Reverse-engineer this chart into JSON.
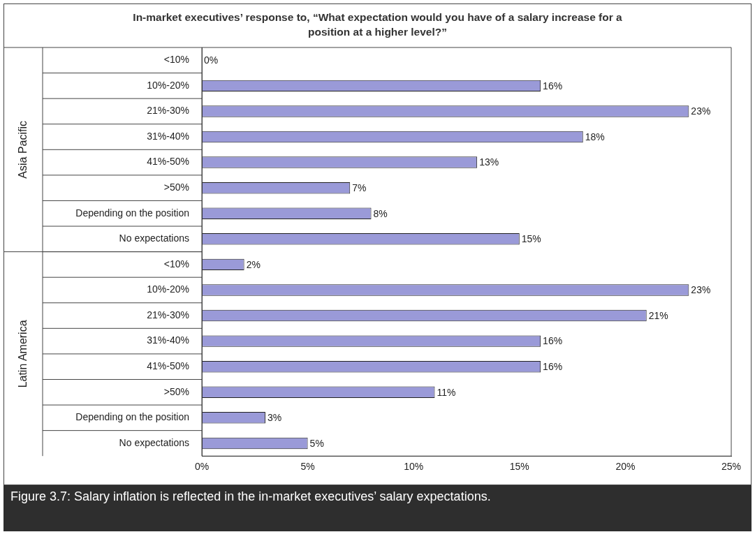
{
  "chart_data": {
    "type": "bar",
    "orientation": "horizontal",
    "title": "In-market executives’ response to, “What expectation would you have of a salary increase for a position at a higher level?”",
    "categories": [
      "<10%",
      "10%-20%",
      "21%-30%",
      "31%-40%",
      "41%-50%",
      ">50%",
      "Depending on the position",
      "No expectations",
      "<10%",
      "10%-20%",
      "21%-30%",
      "31%-40%",
      "41%-50%",
      ">50%",
      "Depending on the position",
      "No expectations"
    ],
    "values": [
      0,
      16,
      23,
      18,
      13,
      7,
      8,
      15,
      2,
      23,
      21,
      16,
      16,
      11,
      3,
      5
    ],
    "value_labels": [
      "0%",
      "16%",
      "23%",
      "18%",
      "13%",
      "7%",
      "8%",
      "15%",
      "2%",
      "23%",
      "21%",
      "16%",
      "16%",
      "11%",
      "3%",
      "5%"
    ],
    "color": "#9a9ad8",
    "xlim": [
      0,
      25
    ],
    "xticks": [
      {
        "value": 0,
        "label": "0%"
      },
      {
        "value": 5,
        "label": "5%"
      },
      {
        "value": 10,
        "label": "10%"
      },
      {
        "value": 15,
        "label": "15%"
      },
      {
        "value": 20,
        "label": "20%"
      },
      {
        "value": 25,
        "label": "25%"
      }
    ],
    "annotations": [
      "Asia Pacific",
      "Latin America",
      "Figure 3.7:  Salary inflation is reflected in the in-market executives’ salary expectations."
    ],
    "legend": false
  }
}
